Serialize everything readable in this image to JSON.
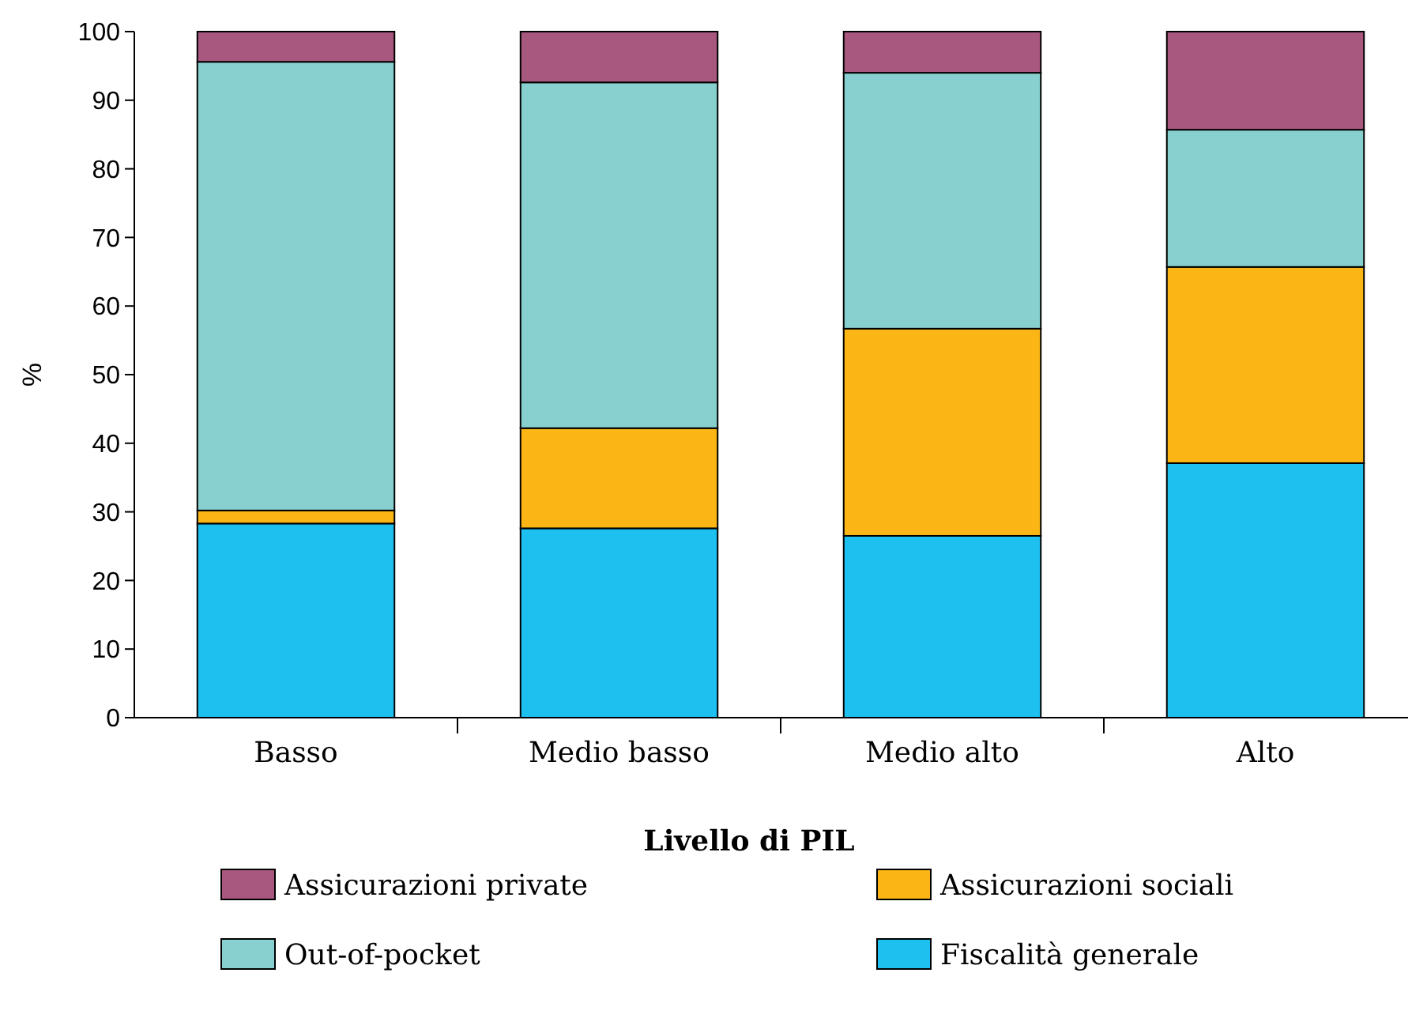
{
  "chart_data": {
    "type": "bar",
    "stacked": true,
    "xlabel": "Livello di PIL",
    "ylabel": "%",
    "categories": [
      "Basso",
      "Medio basso",
      "Medio alto",
      "Alto"
    ],
    "series": [
      {
        "name": "Fiscalità generale",
        "color": "#1ec0f0",
        "values": [
          28.3,
          27.6,
          26.5,
          37.1
        ]
      },
      {
        "name": "Assicurazioni sociali",
        "color": "#fbb615",
        "values": [
          1.9,
          14.6,
          30.2,
          28.6
        ]
      },
      {
        "name": "Out-of-pocket",
        "color": "#88d0cf",
        "values": [
          65.4,
          50.4,
          37.3,
          20.0
        ]
      },
      {
        "name": "Assicurazioni private",
        "color": "#a8577f",
        "values": [
          4.4,
          7.4,
          6.0,
          14.3
        ]
      }
    ],
    "ylim": [
      0,
      100
    ],
    "yticks": [
      0,
      10,
      20,
      30,
      40,
      50,
      60,
      70,
      80,
      90,
      100
    ],
    "grid": false,
    "legend": "bottom"
  }
}
